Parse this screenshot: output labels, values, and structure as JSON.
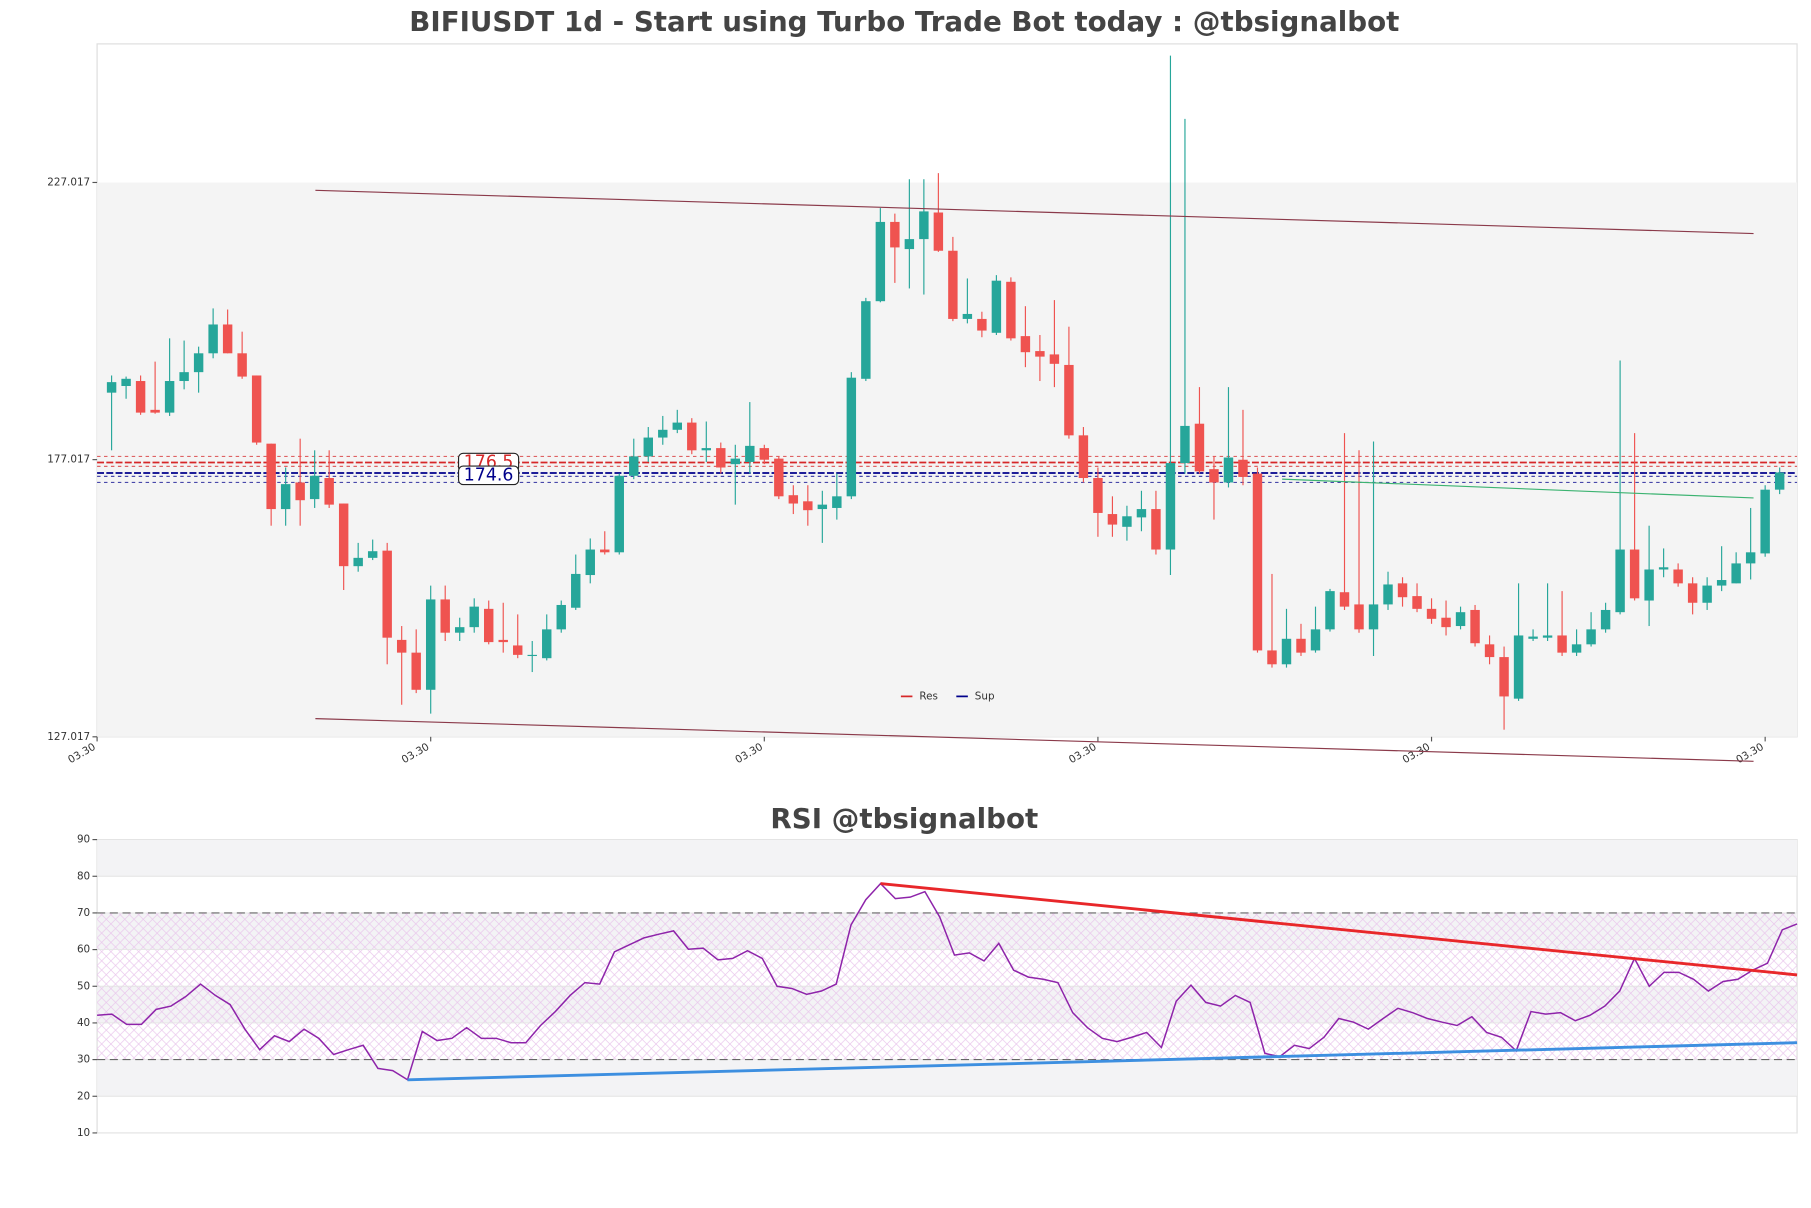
{
  "chart_data": [
    {
      "type": "candlestick",
      "title": "BIFIUSDT 1d - Start using Turbo Trade Bot today : @tbsignalbot",
      "open": [
        189.1,
        190.3,
        191.2,
        186.0,
        185.5,
        191.2,
        192.8,
        196.2,
        201.4,
        196.2,
        192.2,
        179.9,
        168.1,
        172.9,
        169.9,
        173.7,
        169.1,
        157.8,
        159.3,
        160.6,
        144.5,
        142.2,
        135.5,
        151.8,
        145.8,
        146.8,
        150.1,
        144.5,
        143.5,
        141.6,
        141.2,
        146.4,
        150.3,
        156.2,
        160.8,
        160.3,
        174.1,
        177.6,
        181.0,
        182.4,
        183.7,
        178.7,
        179.1,
        176.2,
        176.6,
        179.1,
        177.2,
        170.6,
        169.5,
        168.1,
        168.3,
        170.4,
        191.6,
        205.6,
        219.9,
        215.0,
        216.8,
        221.6,
        214.7,
        202.4,
        202.4,
        199.9,
        209.1,
        199.3,
        196.6,
        196.0,
        194.1,
        181.4,
        173.7,
        167.2,
        164.9,
        166.6,
        168.1,
        160.8,
        176.4,
        183.5,
        175.3,
        172.9,
        177.0,
        174.5,
        142.6,
        140.1,
        144.7,
        142.6,
        146.4,
        153.1,
        150.9,
        146.4,
        150.9,
        154.7,
        152.4,
        150.1,
        148.5,
        147.0,
        149.9,
        143.7,
        141.4,
        133.9,
        144.7,
        144.9,
        145.3,
        142.2,
        143.7,
        146.4,
        149.5,
        160.8,
        151.6,
        157.2,
        157.2,
        154.7,
        151.2,
        154.3,
        154.7,
        158.3,
        160.1,
        171.6
      ],
      "high": [
        192.2,
        192.0,
        192.2,
        194.7,
        198.9,
        198.5,
        197.4,
        204.3,
        204.1,
        200.1,
        192.2,
        179.9,
        175.6,
        180.8,
        178.7,
        178.7,
        169.1,
        162.0,
        162.6,
        162.0,
        147.0,
        146.4,
        154.3,
        154.3,
        148.5,
        152.0,
        151.6,
        151.2,
        149.1,
        144.3,
        149.1,
        151.6,
        159.9,
        162.8,
        164.1,
        174.5,
        180.8,
        182.9,
        184.9,
        186.0,
        184.5,
        183.9,
        180.1,
        179.7,
        187.4,
        179.7,
        177.6,
        172.4,
        172.4,
        171.4,
        174.5,
        192.8,
        206.2,
        222.4,
        221.4,
        227.6,
        227.6,
        228.7,
        217.2,
        209.7,
        203.7,
        210.3,
        209.9,
        204.7,
        199.5,
        205.8,
        201.0,
        182.9,
        175.6,
        170.4,
        168.7,
        171.4,
        171.4,
        249.9,
        238.5,
        190.1,
        177.6,
        190.1,
        186.0,
        175.6,
        156.4,
        150.1,
        147.4,
        150.5,
        153.7,
        181.8,
        178.7,
        180.3,
        156.8,
        155.8,
        154.7,
        152.0,
        151.6,
        150.5,
        150.8,
        145.3,
        143.3,
        154.7,
        146.4,
        154.7,
        153.3,
        146.4,
        149.5,
        151.2,
        194.9,
        181.8,
        165.1,
        161.0,
        158.3,
        155.8,
        155.8,
        161.4,
        160.3,
        168.3,
        172.4,
        175.6
      ],
      "low": [
        178.7,
        188.0,
        185.1,
        185.3,
        184.9,
        189.7,
        189.1,
        195.3,
        196.2,
        191.6,
        179.7,
        165.1,
        165.1,
        165.1,
        168.3,
        168.3,
        153.5,
        156.8,
        158.9,
        140.1,
        132.8,
        134.9,
        131.2,
        144.3,
        144.3,
        145.8,
        143.7,
        142.2,
        141.2,
        138.7,
        140.8,
        145.8,
        149.9,
        154.7,
        159.9,
        159.9,
        173.5,
        176.6,
        179.7,
        181.8,
        178.0,
        176.6,
        174.5,
        168.9,
        174.5,
        176.2,
        169.9,
        167.2,
        165.1,
        162.0,
        166.2,
        169.9,
        191.2,
        205.4,
        208.9,
        207.9,
        206.8,
        214.5,
        202.0,
        201.6,
        199.1,
        199.5,
        198.5,
        193.7,
        191.2,
        190.1,
        180.8,
        172.9,
        163.1,
        163.1,
        162.4,
        164.1,
        159.9,
        156.2,
        174.5,
        174.5,
        166.2,
        172.0,
        172.4,
        142.2,
        139.5,
        139.5,
        141.6,
        142.2,
        146.0,
        149.9,
        145.8,
        141.6,
        149.9,
        150.5,
        149.5,
        147.4,
        145.3,
        146.4,
        143.3,
        140.1,
        128.3,
        133.5,
        144.3,
        144.3,
        141.6,
        141.6,
        143.3,
        145.8,
        149.1,
        151.6,
        147.0,
        155.8,
        154.1,
        149.1,
        149.9,
        153.3,
        154.7,
        155.4,
        159.5,
        170.8
      ],
      "close": [
        191.0,
        191.6,
        185.5,
        185.5,
        191.2,
        192.8,
        196.2,
        201.4,
        196.2,
        192.0,
        180.1,
        168.1,
        172.6,
        169.7,
        174.1,
        168.9,
        157.8,
        159.3,
        160.5,
        144.9,
        142.2,
        135.5,
        151.8,
        145.8,
        146.8,
        150.5,
        144.1,
        144.1,
        141.8,
        141.8,
        146.4,
        150.8,
        156.4,
        160.8,
        160.3,
        174.1,
        177.6,
        181.0,
        182.4,
        183.7,
        178.7,
        179.1,
        175.6,
        177.2,
        179.5,
        177.0,
        170.4,
        169.1,
        167.9,
        168.9,
        170.4,
        191.8,
        205.6,
        219.9,
        215.3,
        216.8,
        221.8,
        214.7,
        202.4,
        203.3,
        200.3,
        209.3,
        198.9,
        196.4,
        195.6,
        194.3,
        181.4,
        173.7,
        167.4,
        165.3,
        166.8,
        168.1,
        160.8,
        176.4,
        183.1,
        174.9,
        172.9,
        177.4,
        173.9,
        142.6,
        140.1,
        144.7,
        142.2,
        146.4,
        153.3,
        150.5,
        146.4,
        150.9,
        154.5,
        152.2,
        150.1,
        148.3,
        146.8,
        149.5,
        143.9,
        141.4,
        134.3,
        145.3,
        145.1,
        145.3,
        142.2,
        143.7,
        146.4,
        149.9,
        160.8,
        152.0,
        157.2,
        157.6,
        154.7,
        151.2,
        154.3,
        155.3,
        158.3,
        160.3,
        171.6,
        174.7
      ],
      "up_color": "#26a69a",
      "down_color": "#ef5350",
      "xlim": [
        -1,
        116.2
      ],
      "xticks": [
        {
          "value": -1,
          "label": "03.30"
        },
        {
          "value": 22,
          "label": "03.30"
        },
        {
          "value": 45,
          "label": "03.30"
        },
        {
          "value": 68,
          "label": "03.30"
        },
        {
          "value": 91,
          "label": "03.30"
        },
        {
          "value": 114,
          "label": "03.30"
        }
      ],
      "ylim": [
        127.017,
        252.017
      ],
      "yticks": [
        127.017,
        177.017,
        227.017
      ],
      "levels": [
        {
          "name": "Res",
          "color": "#d62728",
          "values": [
            176.5,
            177.6,
            175.8
          ]
        },
        {
          "name": "Sup",
          "color": "#00008b",
          "values": [
            174.6,
            174.0,
            172.9
          ]
        }
      ],
      "trendlines": [
        {
          "color": "#8b3a4a",
          "x": [
            14.05,
            113.2
          ],
          "y": [
            225.6,
            217.8
          ]
        },
        {
          "color": "#8b3a4a",
          "x": [
            14.05,
            113.2
          ],
          "y": [
            130.3,
            122.6
          ]
        },
        {
          "color": "#3cb371",
          "x": [
            80.7,
            113.2
          ],
          "y": [
            173.5,
            170.1
          ]
        }
      ],
      "legend_loc": "lower center"
    },
    {
      "type": "line",
      "title": "RSI @tbsignalbot",
      "color": "#8e24aa",
      "values": [
        42.1,
        42.4,
        39.6,
        39.6,
        43.7,
        44.6,
        47.2,
        50.6,
        47.5,
        45.0,
        38.3,
        32.7,
        36.5,
        34.9,
        38.3,
        35.8,
        31.4,
        32.7,
        33.9,
        27.6,
        27.0,
        24.5,
        37.7,
        35.2,
        35.8,
        38.7,
        35.8,
        35.8,
        34.6,
        34.6,
        39.3,
        43.1,
        47.5,
        51.0,
        50.6,
        59.4,
        61.3,
        63.2,
        64.2,
        65.1,
        60.1,
        60.4,
        57.2,
        57.6,
        59.7,
        57.6,
        50.0,
        49.4,
        47.8,
        48.7,
        50.6,
        66.7,
        73.6,
        78.0,
        73.9,
        74.3,
        75.8,
        68.9,
        58.5,
        59.1,
        56.9,
        61.7,
        54.4,
        52.5,
        51.9,
        51.0,
        42.8,
        38.7,
        35.8,
        34.9,
        36.1,
        37.4,
        33.3,
        45.9,
        50.3,
        45.6,
        44.6,
        47.5,
        45.6,
        31.7,
        30.8,
        33.9,
        33.0,
        36.1,
        41.2,
        40.2,
        38.3,
        41.2,
        44.0,
        42.8,
        41.2,
        40.2,
        39.3,
        41.7,
        37.4,
        36.1,
        32.4,
        43.1,
        42.4,
        42.8,
        40.6,
        42.1,
        44.6,
        48.7,
        57.6,
        50.0,
        53.8,
        53.8,
        51.9,
        48.7,
        51.3,
        51.9,
        54.4,
        56.3,
        65.4,
        67.0
      ],
      "xlim": [
        0,
        115
      ],
      "ylim": [
        10,
        90
      ],
      "yticks": [
        10,
        20,
        30,
        40,
        50,
        60,
        70,
        80,
        90
      ],
      "hlines": [
        30,
        70
      ],
      "trendlines": [
        {
          "color": "#e8272a",
          "x": [
            53,
            115
          ],
          "y": [
            78.0,
            53.1
          ]
        },
        {
          "color": "#3d8fe0",
          "x": [
            21,
            115
          ],
          "y": [
            24.5,
            34.6
          ]
        }
      ]
    }
  ]
}
